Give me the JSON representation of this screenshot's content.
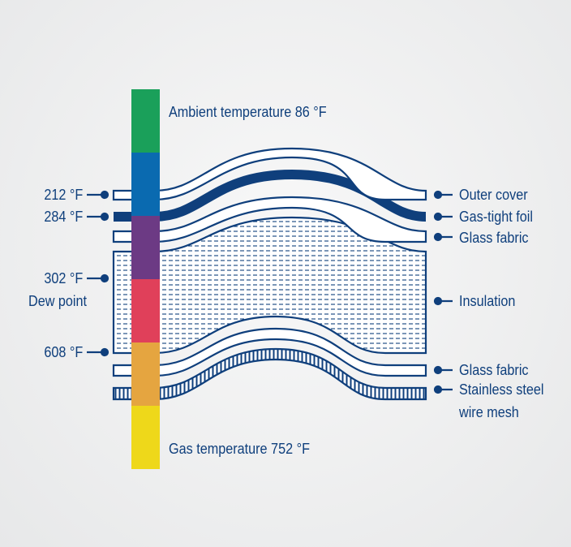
{
  "temperature_bar": {
    "segments": [
      {
        "name": "ambient",
        "color": "#1aa05a"
      },
      {
        "name": "blue",
        "color": "#0a6ab0"
      },
      {
        "name": "purple",
        "color": "#6c3a84"
      },
      {
        "name": "red",
        "color": "#e0405a"
      },
      {
        "name": "orange",
        "color": "#e5a540"
      },
      {
        "name": "gas",
        "color": "#eed81a"
      }
    ],
    "ambient_label": "Ambient temperature 86 °F",
    "gas_label": "Gas temperature 752 °F"
  },
  "left_labels": {
    "t212": "212 °F",
    "t284": "284 °F",
    "t302": "302 °F",
    "dew_point": "Dew point",
    "t608": "608 °F"
  },
  "layers": {
    "outer_cover": "Outer cover",
    "gas_tight_foil": "Gas-tight foil",
    "glass_fabric_top": "Glass fabric",
    "insulation": "Insulation",
    "glass_fabric_bottom": "Glass fabric",
    "wire_mesh_line1": "Stainless steel",
    "wire_mesh_line2": "wire mesh"
  },
  "colors": {
    "line": "#0f3f7c",
    "text": "#0f3f7c"
  }
}
